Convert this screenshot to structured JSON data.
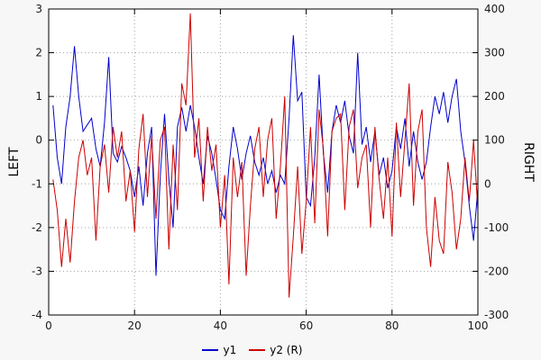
{
  "figure": {
    "background": "#f7f7f7",
    "plot_background": "#ffffff",
    "grid_color": "#a0a0a0",
    "border_color": "#000000",
    "text_color": "#1a1a1a"
  },
  "chart_data": {
    "type": "line",
    "title": "",
    "grid": true,
    "legend_position": "bottom-center",
    "x_axis": {
      "label": "",
      "min": 0,
      "max": 100,
      "ticks": [
        0,
        20,
        40,
        60,
        80,
        100
      ]
    },
    "left_axis": {
      "label": "LEFT",
      "min": -4,
      "max": 3,
      "ticks": [
        -4,
        -3,
        -2,
        -1,
        0,
        1,
        2,
        3
      ]
    },
    "right_axis": {
      "label": "RIGHT",
      "min": -300,
      "max": 400,
      "ticks": [
        -300,
        -200,
        -100,
        0,
        100,
        200,
        300,
        400
      ]
    },
    "x": [
      1,
      2,
      3,
      4,
      5,
      6,
      7,
      8,
      9,
      10,
      11,
      12,
      13,
      14,
      15,
      16,
      17,
      18,
      19,
      20,
      21,
      22,
      23,
      24,
      25,
      26,
      27,
      28,
      29,
      30,
      31,
      32,
      33,
      34,
      35,
      36,
      37,
      38,
      39,
      40,
      41,
      42,
      43,
      44,
      45,
      46,
      47,
      48,
      49,
      50,
      51,
      52,
      53,
      54,
      55,
      56,
      57,
      58,
      59,
      60,
      61,
      62,
      63,
      64,
      65,
      66,
      67,
      68,
      69,
      70,
      71,
      72,
      73,
      74,
      75,
      76,
      77,
      78,
      79,
      80,
      81,
      82,
      83,
      84,
      85,
      86,
      87,
      88,
      89,
      90,
      91,
      92,
      93,
      94,
      95,
      96,
      97,
      98,
      99,
      100
    ],
    "series": [
      {
        "name": "y1",
        "axis": "left",
        "color": "#0000cc",
        "values": [
          0.8,
          -0.4,
          -1.0,
          0.3,
          1.0,
          2.15,
          1.0,
          0.2,
          0.35,
          0.5,
          -0.2,
          -0.6,
          0.4,
          1.9,
          -0.3,
          -0.5,
          -0.15,
          -0.4,
          -0.7,
          -1.3,
          -0.6,
          -1.5,
          -0.3,
          0.3,
          -3.1,
          -0.8,
          0.6,
          -0.9,
          -2.0,
          0.3,
          0.75,
          0.2,
          0.8,
          0.3,
          -0.4,
          -1.0,
          0.1,
          -0.3,
          -0.9,
          -1.6,
          -1.8,
          -0.6,
          0.3,
          -0.2,
          -0.9,
          -0.3,
          0.1,
          -0.5,
          -0.8,
          -0.4,
          -1.0,
          -0.7,
          -1.2,
          -0.8,
          -1.0,
          0.5,
          2.4,
          0.9,
          1.1,
          -1.3,
          -1.5,
          -0.4,
          1.5,
          -0.3,
          -1.2,
          0.2,
          0.8,
          0.4,
          0.9,
          0.1,
          -0.3,
          2.0,
          -0.1,
          0.3,
          -0.5,
          0.2,
          -0.8,
          -0.4,
          -1.1,
          -0.7,
          0.3,
          -0.2,
          0.5,
          -0.6,
          0.2,
          -0.5,
          -0.9,
          -0.5,
          0.3,
          1.0,
          0.6,
          1.1,
          0.4,
          1.0,
          1.4,
          0.2,
          -0.5,
          -1.5,
          -2.3,
          -1.1
        ]
      },
      {
        "name": "y2 (R)",
        "axis": "right",
        "color": "#cc0000",
        "values": [
          10,
          -60,
          -190,
          -80,
          -180,
          -40,
          60,
          100,
          20,
          60,
          -130,
          40,
          90,
          -20,
          130,
          60,
          120,
          -40,
          30,
          -110,
          80,
          160,
          -30,
          110,
          -80,
          100,
          130,
          -150,
          90,
          -60,
          230,
          180,
          390,
          60,
          150,
          -40,
          130,
          30,
          90,
          -100,
          20,
          -230,
          60,
          -30,
          50,
          -210,
          -50,
          80,
          130,
          -30,
          100,
          150,
          -80,
          40,
          200,
          -260,
          -120,
          40,
          -160,
          -40,
          130,
          -90,
          170,
          80,
          -120,
          120,
          150,
          160,
          -60,
          130,
          170,
          -10,
          60,
          90,
          -100,
          130,
          10,
          -80,
          60,
          -120,
          140,
          -30,
          100,
          230,
          -50,
          120,
          170,
          -100,
          -190,
          -30,
          -130,
          -160,
          50,
          -20,
          -150,
          -80,
          60,
          -40,
          100,
          -60
        ]
      }
    ]
  },
  "legend": {
    "items": [
      {
        "label": "y1",
        "color": "#0000cc"
      },
      {
        "label": "y2 (R)",
        "color": "#cc0000"
      }
    ]
  }
}
